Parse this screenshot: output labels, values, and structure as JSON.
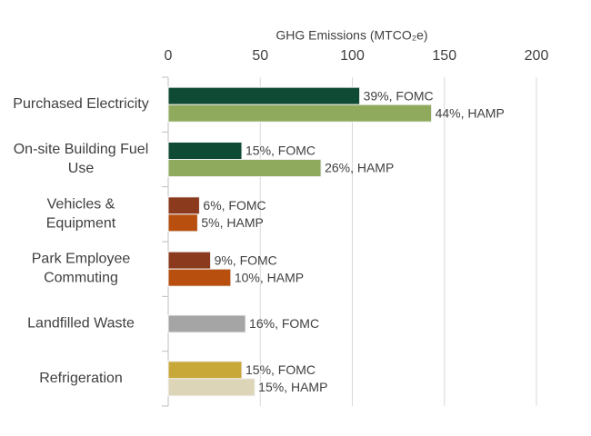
{
  "chart_data": {
    "type": "bar",
    "orientation": "horizontal",
    "title": "GHG Emissions (MTCO₂e)",
    "categories": [
      "Purchased Electricity",
      "On-site Building Fuel\nUse",
      "Vehicles &\nEquipment",
      "Park Employee\nCommuting",
      "Landfilled Waste",
      "Refrigeration"
    ],
    "series": [
      {
        "values": [
          104,
          40,
          17,
          23,
          42,
          40
        ],
        "labels": [
          "39%, FOMC",
          "15%, FOMC",
          "6%, FOMC",
          "9%, FOMC",
          "16%, FOMC",
          "15%, FOMC"
        ],
        "colors": [
          "#0f4a35",
          "#0f4a35",
          "#8b3a1e",
          "#8b3a1e",
          "#a5a5a5",
          "#c9a83a"
        ]
      },
      {
        "values": [
          143,
          83,
          16,
          34,
          null,
          47
        ],
        "labels": [
          "44%, HAMP",
          "26%, HAMP",
          "5%, HAMP",
          "10%, HAMP",
          null,
          "15%, HAMP"
        ],
        "colors": [
          "#8faa5c",
          "#8faa5c",
          "#b84f0f",
          "#b84f0f",
          null,
          "#ddd5b8"
        ]
      }
    ],
    "xlim": [
      0,
      200
    ],
    "xticks": [
      0,
      50,
      100,
      150,
      200
    ],
    "grid": true
  }
}
